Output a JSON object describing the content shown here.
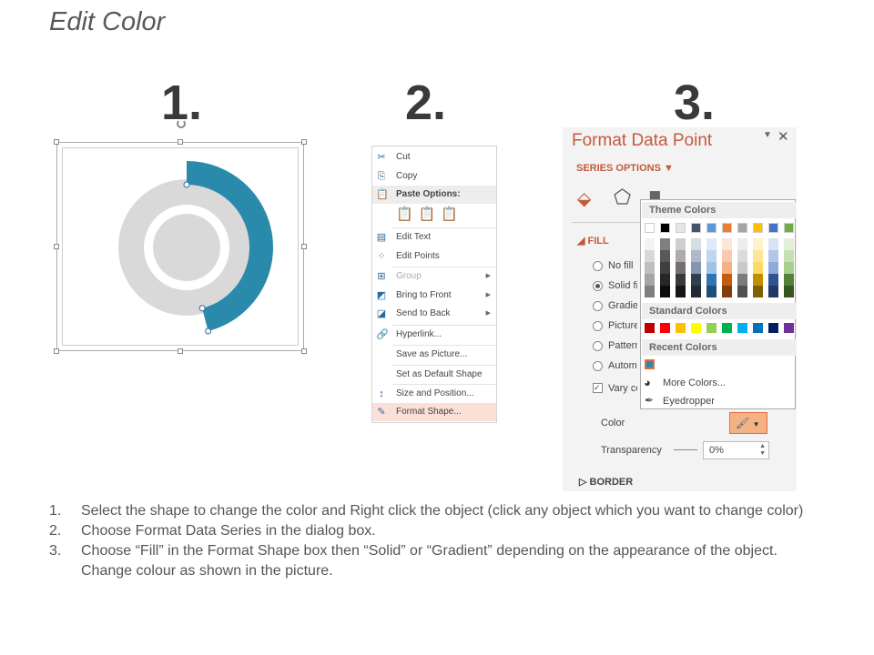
{
  "title": "Edit Color",
  "step_numbers": [
    "1.",
    "2.",
    "3."
  ],
  "donut": {
    "highlight_color": "#2a8aab",
    "ring_color": "#d9d9d9",
    "highlight_fraction": 0.46
  },
  "context_menu": {
    "items": [
      {
        "label": "Cut",
        "icon": "scissors-icon",
        "glyph": "✂"
      },
      {
        "label": "Copy",
        "icon": "copy-icon",
        "glyph": "⎘"
      },
      {
        "label": "Paste Options:",
        "icon": "paste-icon",
        "glyph": "📋"
      },
      {
        "label": "Edit Text",
        "icon": "edit-text-icon",
        "glyph": "▤"
      },
      {
        "label": "Edit Points",
        "icon": "edit-points-icon",
        "glyph": "⁘"
      },
      {
        "label": "Group",
        "icon": "group-icon",
        "glyph": "⊞",
        "disabled": true,
        "submenu": true
      },
      {
        "label": "Bring to Front",
        "icon": "bring-front-icon",
        "glyph": "◩",
        "submenu": true
      },
      {
        "label": "Send to Back",
        "icon": "send-back-icon",
        "glyph": "◪",
        "submenu": true
      },
      {
        "label": "Hyperlink...",
        "icon": "hyperlink-icon",
        "glyph": "🔗"
      },
      {
        "label": "Save as Picture...",
        "icon": "",
        "glyph": ""
      },
      {
        "label": "Set as Default Shape",
        "icon": "",
        "glyph": ""
      },
      {
        "label": "Size and Position...",
        "icon": "size-position-icon",
        "glyph": "↕"
      },
      {
        "label": "Format Shape...",
        "icon": "format-shape-icon",
        "glyph": "✎",
        "highlighted": true
      }
    ]
  },
  "format_panel": {
    "title": "Format Data Point",
    "series_options": "SERIES OPTIONS",
    "fill_header": "FILL",
    "fill_options": [
      {
        "label": "No fill"
      },
      {
        "label": "Solid fill",
        "selected": true
      },
      {
        "label": "Gradient fill"
      },
      {
        "label": "Picture or texture fill"
      },
      {
        "label": "Pattern fill"
      },
      {
        "label": "Automatic"
      }
    ],
    "vary_colors": "Vary colors by point",
    "color_label": "Color",
    "transparency_label": "Transparency",
    "transparency_value": "0%",
    "border_header": "BORDER",
    "accent": "#c55a3b"
  },
  "color_picker": {
    "theme_title": "Theme Colors",
    "theme": [
      "#ffffff",
      "#000000",
      "#e7e6e6",
      "#44546a",
      "#5b9bd5",
      "#ed7d31",
      "#a5a5a5",
      "#ffc000",
      "#4472c4",
      "#70ad47"
    ],
    "shades": [
      [
        "#f2f2f2",
        "#7f7f7f",
        "#d0cece",
        "#d6dce4",
        "#deebf6",
        "#fbe5d5",
        "#ededed",
        "#fff2cc",
        "#dae3f3",
        "#e2efd9"
      ],
      [
        "#d8d8d8",
        "#595959",
        "#aeabab",
        "#adb9ca",
        "#bdd7ee",
        "#f7cbac",
        "#dbdbdb",
        "#fee599",
        "#b4c6e7",
        "#c5e0b3"
      ],
      [
        "#bfbfbf",
        "#3f3f3f",
        "#757070",
        "#8496b0",
        "#9dc3e6",
        "#f4b183",
        "#c9c9c9",
        "#ffd965",
        "#8eaadb",
        "#a8d08d"
      ],
      [
        "#a5a5a5",
        "#262626",
        "#3a3838",
        "#323f4f",
        "#2e75b5",
        "#c55a11",
        "#7b7b7b",
        "#bf9000",
        "#2f5496",
        "#538135"
      ],
      [
        "#7f7f7f",
        "#0c0c0c",
        "#171616",
        "#222a35",
        "#1e4e79",
        "#833c0b",
        "#525252",
        "#7f6000",
        "#1f3864",
        "#375623"
      ]
    ],
    "standard_title": "Standard Colors",
    "standard": [
      "#c00000",
      "#ff0000",
      "#ffc000",
      "#ffff00",
      "#92d050",
      "#00b050",
      "#00b0f0",
      "#0070c0",
      "#002060",
      "#7030a0"
    ],
    "recent_title": "Recent Colors",
    "recent": [
      "#2a8aab"
    ],
    "more_colors": "More Colors...",
    "eyedropper": "Eyedropper"
  },
  "steps": [
    {
      "n": "1.",
      "text": "Select the shape to change the color and Right click the object (click any object which you want to change color)"
    },
    {
      "n": "2.",
      "text": "Choose Format Data Series in the dialog box."
    },
    {
      "n": "3.",
      "text": "Choose “Fill” in the Format Shape box then “Solid” or “Gradient” depending on the appearance of the object. Change colour as shown in the picture."
    }
  ]
}
